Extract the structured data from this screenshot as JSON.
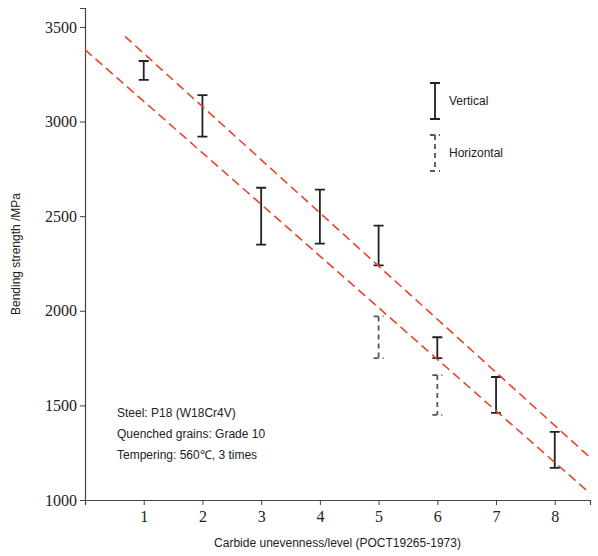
{
  "chart_data": {
    "type": "errorbar",
    "x_label": "Carbide unevenness/level (POCT19265-1973)",
    "y_label": "Bending strength /MPa",
    "annotations": [
      "Steel: P18 (W18Cr4V)",
      "Quenched grains: Grade 10",
      "Tempering: 560℃, 3 times"
    ],
    "xlim": [
      0,
      8.6
    ],
    "xticks": [
      1,
      2,
      3,
      4,
      5,
      6,
      7,
      8
    ],
    "ylim": [
      1000,
      3600
    ],
    "yticks": [
      1000,
      1500,
      2000,
      2500,
      3000,
      3500
    ],
    "legend": "upper right",
    "series": [
      {
        "name": "Vertical",
        "type": "errorbar",
        "color": "#222222",
        "line_style": "solid",
        "x": [
          1,
          2,
          3,
          4,
          5,
          6,
          7,
          8
        ],
        "low": [
          3220,
          2920,
          2350,
          2355,
          2240,
          1750,
          1460,
          1170
        ],
        "high": [
          3320,
          3140,
          2650,
          2640,
          2450,
          1860,
          1650,
          1360
        ]
      },
      {
        "name": "Horizontal",
        "type": "errorbar",
        "color": "#555555",
        "line_style": "dashed",
        "x": [
          5,
          6
        ],
        "low": [
          1750,
          1450
        ],
        "high": [
          1970,
          1660
        ]
      },
      {
        "type": "line",
        "color": "#e8452c",
        "line_style": "dashed",
        "x": [
          0.68,
          8.6
        ],
        "values": [
          3450,
          1225
        ]
      },
      {
        "type": "line",
        "color": "#e8452c",
        "line_style": "dashed",
        "x": [
          0,
          8.6
        ],
        "values": [
          3380,
          1035
        ]
      }
    ]
  }
}
